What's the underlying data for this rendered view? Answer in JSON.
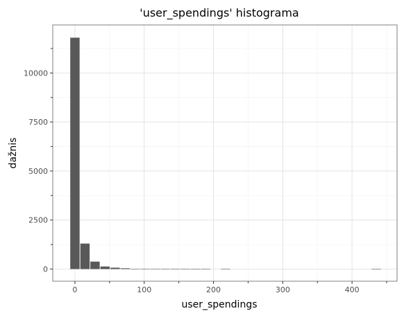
{
  "chart_data": {
    "type": "bar",
    "title": "'user_spendings' histograma",
    "xlabel": "user_spendings",
    "ylabel": "dažnis",
    "xlim": [
      -32,
      465
    ],
    "ylim": [
      -620,
      12450
    ],
    "x_ticks": [
      0,
      100,
      200,
      300,
      400
    ],
    "x_tick_labels": [
      "0",
      "100",
      "200",
      "300",
      "400"
    ],
    "x_minor_ticks": [
      50,
      150,
      250,
      350,
      450
    ],
    "y_ticks": [
      0,
      2500,
      5000,
      7500,
      10000
    ],
    "y_tick_labels": [
      "0",
      "2500",
      "5000",
      "7500",
      "10000"
    ],
    "y_minor_ticks": [
      1250,
      3750,
      6250,
      8750,
      11250
    ],
    "grid": true,
    "bar_color": "#595959",
    "bin_width": 14.5,
    "bins": [
      {
        "x": 0,
        "count": 11800
      },
      {
        "x": 14.5,
        "count": 1300
      },
      {
        "x": 29,
        "count": 380
      },
      {
        "x": 43.5,
        "count": 130
      },
      {
        "x": 58,
        "count": 70
      },
      {
        "x": 72.5,
        "count": 40
      },
      {
        "x": 87,
        "count": 10
      },
      {
        "x": 101.5,
        "count": 5
      },
      {
        "x": 116,
        "count": 3
      },
      {
        "x": 130.5,
        "count": 2
      },
      {
        "x": 145,
        "count": 1
      },
      {
        "x": 159.5,
        "count": 1
      },
      {
        "x": 174,
        "count": 1
      },
      {
        "x": 188.5,
        "count": 1
      },
      {
        "x": 203,
        "count": 0
      },
      {
        "x": 217.5,
        "count": 1
      },
      {
        "x": 232,
        "count": 0
      },
      {
        "x": 246.5,
        "count": 0
      },
      {
        "x": 261,
        "count": 0
      },
      {
        "x": 275.5,
        "count": 0
      },
      {
        "x": 290,
        "count": 0
      },
      {
        "x": 304.5,
        "count": 0
      },
      {
        "x": 319,
        "count": 0
      },
      {
        "x": 333.5,
        "count": 0
      },
      {
        "x": 348,
        "count": 0
      },
      {
        "x": 362.5,
        "count": 0
      },
      {
        "x": 377,
        "count": 0
      },
      {
        "x": 391.5,
        "count": 0
      },
      {
        "x": 406,
        "count": 0
      },
      {
        "x": 420.5,
        "count": 0
      },
      {
        "x": 435,
        "count": 1
      }
    ]
  }
}
